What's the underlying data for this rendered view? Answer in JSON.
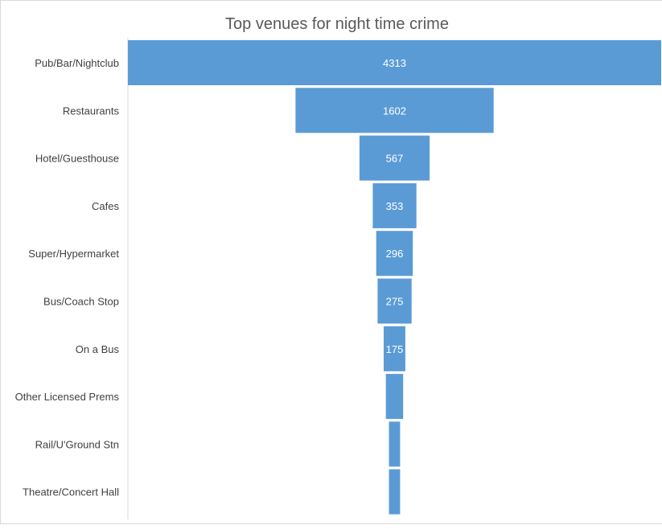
{
  "chart_data": {
    "type": "bar",
    "subtype": "funnel",
    "title": "Top venues for night time crime",
    "categories": [
      "Pub/Bar/Nightclub",
      "Restaurants",
      "Hotel/Guesthouse",
      "Cafes",
      "Super/Hypermarket",
      "Bus/Coach Stop",
      "On a Bus",
      "Other Licensed Prems",
      "Rail/U'Ground Stn",
      "Theatre/Concert Hall"
    ],
    "values": [
      4313,
      1602,
      567,
      353,
      296,
      275,
      175,
      140,
      90,
      90
    ],
    "data_labels": [
      "4313",
      "1602",
      "567",
      "353",
      "296",
      "275",
      "175",
      "",
      "",
      ""
    ],
    "bar_color": "#5B9BD5",
    "label_color": "#ffffff",
    "grid": false,
    "legend": "none"
  }
}
